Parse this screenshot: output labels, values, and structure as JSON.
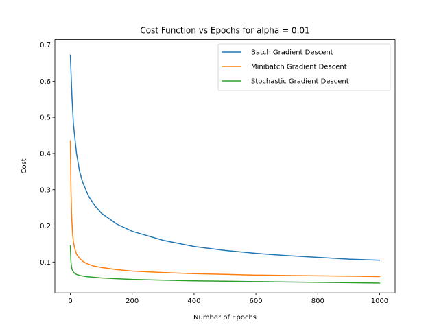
{
  "chart_data": {
    "type": "line",
    "title": "Cost Function vs Epochs for alpha = 0.01",
    "xlabel": "Number of Epochs",
    "ylabel": "Cost",
    "xlim": [
      -50,
      1050
    ],
    "ylim": [
      0.015,
      0.715
    ],
    "xticks": [
      0,
      200,
      400,
      600,
      800,
      1000
    ],
    "yticks": [
      0.1,
      0.2,
      0.3,
      0.4,
      0.5,
      0.6,
      0.7
    ],
    "xtick_labels": [
      "0",
      "200",
      "400",
      "600",
      "800",
      "1000"
    ],
    "ytick_labels": [
      "0.1",
      "0.2",
      "0.3",
      "0.4",
      "0.5",
      "0.6",
      "0.7"
    ],
    "grid": false,
    "legend_position": "top-right",
    "series": [
      {
        "name": "Batch Gradient Descent",
        "color": "#1f77b4",
        "x": [
          0,
          5,
          10,
          20,
          30,
          40,
          50,
          60,
          80,
          100,
          150,
          200,
          300,
          400,
          500,
          600,
          700,
          800,
          900,
          1000
        ],
        "y": [
          0.672,
          0.56,
          0.48,
          0.4,
          0.35,
          0.32,
          0.3,
          0.28,
          0.255,
          0.235,
          0.205,
          0.185,
          0.16,
          0.143,
          0.132,
          0.124,
          0.118,
          0.113,
          0.108,
          0.105
        ]
      },
      {
        "name": "Minibatch Gradient Descent",
        "color": "#ff7f0e",
        "x": [
          0,
          2,
          4,
          7,
          10,
          15,
          20,
          30,
          40,
          50,
          75,
          100,
          150,
          200,
          300,
          400,
          500,
          600,
          700,
          800,
          900,
          1000
        ],
        "y": [
          0.435,
          0.3,
          0.23,
          0.18,
          0.155,
          0.135,
          0.122,
          0.11,
          0.102,
          0.097,
          0.089,
          0.085,
          0.079,
          0.075,
          0.071,
          0.068,
          0.066,
          0.064,
          0.063,
          0.062,
          0.061,
          0.06
        ]
      },
      {
        "name": "Stochastic Gradient Descent",
        "color": "#2ca02c",
        "x": [
          0,
          2,
          4,
          7,
          10,
          15,
          20,
          30,
          50,
          75,
          100,
          150,
          200,
          300,
          400,
          500,
          600,
          700,
          800,
          900,
          1000
        ],
        "y": [
          0.145,
          0.1,
          0.085,
          0.077,
          0.072,
          0.068,
          0.066,
          0.063,
          0.06,
          0.058,
          0.056,
          0.054,
          0.052,
          0.05,
          0.048,
          0.047,
          0.046,
          0.045,
          0.044,
          0.043,
          0.042
        ]
      }
    ]
  }
}
